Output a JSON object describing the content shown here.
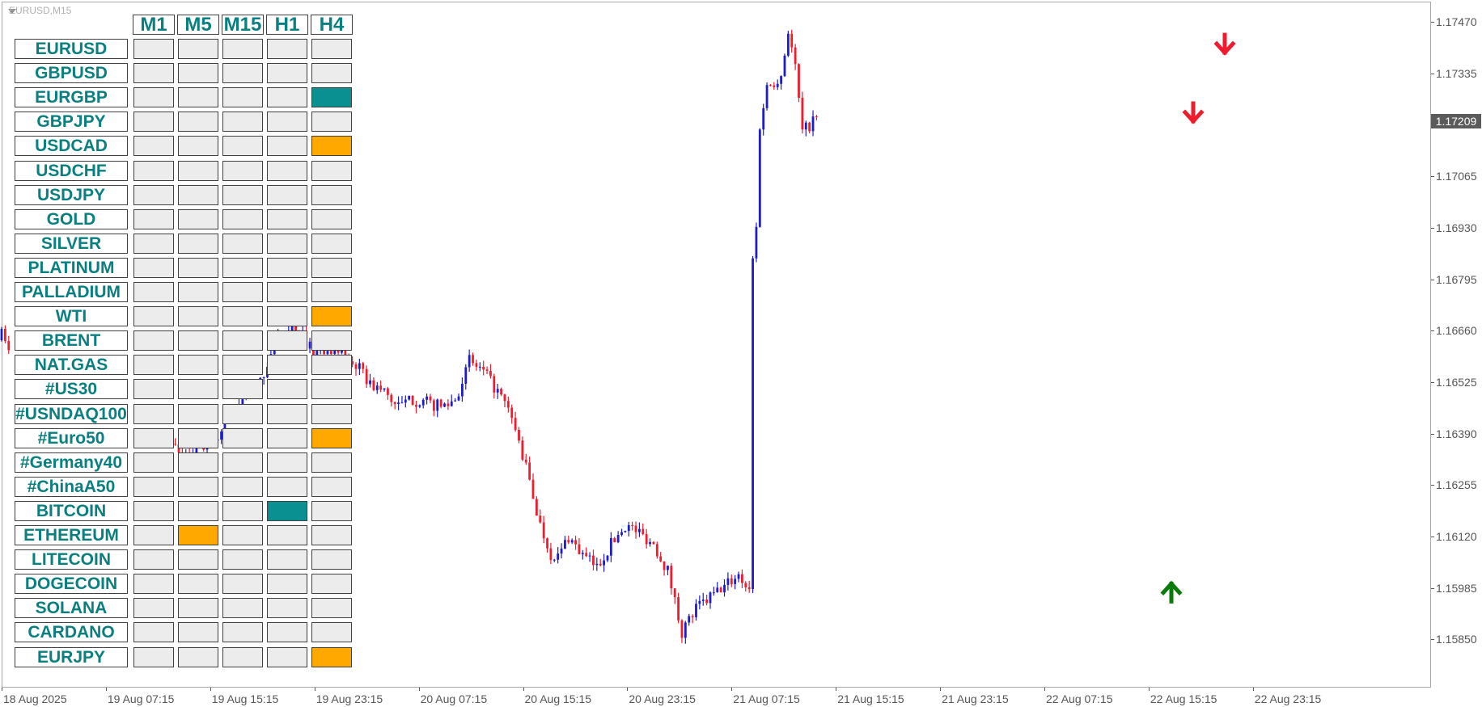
{
  "window": {
    "symbol_title": "EURUSD,M15"
  },
  "colors": {
    "bull": "#1c1ccc",
    "bear": "#ee1c2c",
    "buy_signal": "#0a9090",
    "sell_signal": "#ffa800",
    "neutral_cell": "#ececec",
    "label_text": "#0a7f7f",
    "buy_arrow": "#0a7a0a",
    "sell_arrow": "#ee1c2c"
  },
  "dashboard": {
    "timeframes": [
      "M1",
      "M5",
      "M15",
      "H1",
      "H4"
    ],
    "rows": [
      {
        "symbol": "EURUSD",
        "signals": [
          "none",
          "none",
          "none",
          "none",
          "none"
        ]
      },
      {
        "symbol": "GBPUSD",
        "signals": [
          "none",
          "none",
          "none",
          "none",
          "none"
        ]
      },
      {
        "symbol": "EURGBP",
        "signals": [
          "none",
          "none",
          "none",
          "none",
          "buy"
        ]
      },
      {
        "symbol": "GBPJPY",
        "signals": [
          "none",
          "none",
          "none",
          "none",
          "none"
        ]
      },
      {
        "symbol": "USDCAD",
        "signals": [
          "none",
          "none",
          "none",
          "none",
          "sell"
        ]
      },
      {
        "symbol": "USDCHF",
        "signals": [
          "none",
          "none",
          "none",
          "none",
          "none"
        ]
      },
      {
        "symbol": "USDJPY",
        "signals": [
          "none",
          "none",
          "none",
          "none",
          "none"
        ]
      },
      {
        "symbol": "GOLD",
        "signals": [
          "none",
          "none",
          "none",
          "none",
          "none"
        ]
      },
      {
        "symbol": "SILVER",
        "signals": [
          "none",
          "none",
          "none",
          "none",
          "none"
        ]
      },
      {
        "symbol": "PLATINUM",
        "signals": [
          "none",
          "none",
          "none",
          "none",
          "none"
        ]
      },
      {
        "symbol": "PALLADIUM",
        "signals": [
          "none",
          "none",
          "none",
          "none",
          "none"
        ]
      },
      {
        "symbol": "WTI",
        "signals": [
          "none",
          "none",
          "none",
          "none",
          "sell"
        ]
      },
      {
        "symbol": "BRENT",
        "signals": [
          "none",
          "none",
          "none",
          "none",
          "none"
        ]
      },
      {
        "symbol": "NAT.GAS",
        "signals": [
          "none",
          "none",
          "none",
          "none",
          "none"
        ]
      },
      {
        "symbol": "#US30",
        "signals": [
          "none",
          "none",
          "none",
          "none",
          "none"
        ]
      },
      {
        "symbol": "#USNDAQ100",
        "signals": [
          "none",
          "none",
          "none",
          "none",
          "none"
        ]
      },
      {
        "symbol": "#Euro50",
        "signals": [
          "none",
          "none",
          "none",
          "none",
          "sell"
        ]
      },
      {
        "symbol": "#Germany40",
        "signals": [
          "none",
          "none",
          "none",
          "none",
          "none"
        ]
      },
      {
        "symbol": "#ChinaA50",
        "signals": [
          "none",
          "none",
          "none",
          "none",
          "none"
        ]
      },
      {
        "symbol": "BITCOIN",
        "signals": [
          "none",
          "none",
          "none",
          "buy",
          "none"
        ]
      },
      {
        "symbol": "ETHEREUM",
        "signals": [
          "none",
          "sell",
          "none",
          "none",
          "none"
        ]
      },
      {
        "symbol": "LITECOIN",
        "signals": [
          "none",
          "none",
          "none",
          "none",
          "none"
        ]
      },
      {
        "symbol": "DOGECOIN",
        "signals": [
          "none",
          "none",
          "none",
          "none",
          "none"
        ]
      },
      {
        "symbol": "SOLANA",
        "signals": [
          "none",
          "none",
          "none",
          "none",
          "none"
        ]
      },
      {
        "symbol": "CARDANO",
        "signals": [
          "none",
          "none",
          "none",
          "none",
          "none"
        ]
      },
      {
        "symbol": "EURJPY",
        "signals": [
          "none",
          "none",
          "none",
          "none",
          "sell"
        ]
      }
    ]
  },
  "price_axis": {
    "labels": [
      "1.17470",
      "1.17335",
      "1.17065",
      "1.16930",
      "1.16795",
      "1.16660",
      "1.16525",
      "1.16390",
      "1.16255",
      "1.16120",
      "1.15985",
      "1.15850"
    ],
    "current_price": "1.17209"
  },
  "time_axis": {
    "labels": [
      "18 Aug 2025",
      "19 Aug 07:15",
      "19 Aug 15:15",
      "19 Aug 23:15",
      "20 Aug 07:15",
      "20 Aug 15:15",
      "20 Aug 23:15",
      "21 Aug 07:15",
      "21 Aug 15:15",
      "21 Aug 23:15",
      "22 Aug 07:15",
      "22 Aug 15:15",
      "22 Aug 23:15"
    ]
  },
  "chart_data": {
    "type": "candlestick",
    "symbol": "EURUSD",
    "timeframe": "M15",
    "ylim": [
      1.1581,
      1.1749
    ],
    "price_waypoints": [
      [
        0,
        1.1665
      ],
      [
        2,
        1.166
      ],
      [
        48,
        1.1637
      ],
      [
        52,
        1.1632
      ],
      [
        56,
        1.1635
      ],
      [
        60,
        1.1637
      ],
      [
        64,
        1.1643
      ],
      [
        68,
        1.1648
      ],
      [
        72,
        1.165
      ],
      [
        76,
        1.166
      ],
      [
        80,
        1.1667
      ],
      [
        84,
        1.1666
      ],
      [
        88,
        1.166
      ],
      [
        92,
        1.1662
      ],
      [
        96,
        1.166
      ],
      [
        100,
        1.1657
      ],
      [
        104,
        1.1652
      ],
      [
        108,
        1.165
      ],
      [
        112,
        1.1646
      ],
      [
        116,
        1.1648
      ],
      [
        120,
        1.1647
      ],
      [
        124,
        1.1646
      ],
      [
        128,
        1.1648
      ],
      [
        132,
        1.1658
      ],
      [
        136,
        1.1655
      ],
      [
        140,
        1.165
      ],
      [
        144,
        1.1643
      ],
      [
        148,
        1.163
      ],
      [
        152,
        1.1615
      ],
      [
        156,
        1.1605
      ],
      [
        160,
        1.1612
      ],
      [
        164,
        1.1607
      ],
      [
        168,
        1.1604
      ],
      [
        172,
        1.161
      ],
      [
        176,
        1.1615
      ],
      [
        180,
        1.1613
      ],
      [
        184,
        1.161
      ],
      [
        188,
        1.1603
      ],
      [
        192,
        1.1587
      ],
      [
        196,
        1.1593
      ],
      [
        200,
        1.1596
      ],
      [
        204,
        1.1599
      ],
      [
        208,
        1.1602
      ],
      [
        211,
        1.1598
      ],
      [
        212,
        1.1685
      ],
      [
        213,
        1.1693
      ],
      [
        214,
        1.172
      ],
      [
        216,
        1.173
      ],
      [
        220,
        1.1733
      ],
      [
        222,
        1.1745
      ],
      [
        224,
        1.1735
      ],
      [
        226,
        1.1718
      ],
      [
        228,
        1.172
      ],
      [
        230,
        1.1722
      ]
    ],
    "sell_arrows": [
      1.1721,
      1.1739
    ],
    "buy_arrows": [
      1.16
    ]
  }
}
